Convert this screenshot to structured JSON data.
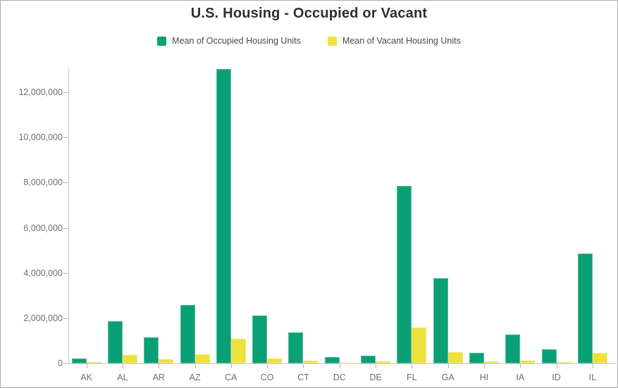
{
  "title": "U.S. Housing - Occupied or Vacant",
  "colors": {
    "occupied": "#0aa076",
    "occupied_border": "#5abf9b",
    "vacant": "#ece23e",
    "vacant_border": "#f1e87d",
    "axis_line": "#c6c6c6",
    "tick": "#b5b5b5",
    "title_text": "#2f2f2f",
    "axis_text": "#6f6f6f",
    "legend_text": "#4a4a4a",
    "canvas_border": "#a9a9a9"
  },
  "legend": {
    "items": [
      {
        "label": "Mean of Occupied Housing Units",
        "color": "#0aa076"
      },
      {
        "label": "Mean of Vacant Housing Units",
        "color": "#ece23e"
      }
    ]
  },
  "chart_data": {
    "type": "bar",
    "title": "U.S. Housing - Occupied or Vacant",
    "xlabel": "",
    "ylabel": "",
    "grid": false,
    "legend_position": "top",
    "categories": [
      "AK",
      "AL",
      "AR",
      "AZ",
      "CA",
      "CO",
      "CT",
      "DC",
      "DE",
      "FL",
      "GA",
      "HI",
      "IA",
      "ID",
      "IL"
    ],
    "series": [
      {
        "name": "Mean of Occupied Housing Units",
        "color": "#0aa076",
        "values": [
          230000,
          1860000,
          1140000,
          2600000,
          13030000,
          2110000,
          1360000,
          280000,
          340000,
          7850000,
          3780000,
          460000,
          1265000,
          630000,
          4850000
        ]
      },
      {
        "name": "Mean of Vacant Housing Units",
        "color": "#ece23e",
        "values": [
          55000,
          375000,
          190000,
          400000,
          1090000,
          210000,
          110000,
          35000,
          95000,
          1580000,
          490000,
          80000,
          140000,
          75000,
          460000
        ]
      }
    ],
    "yticks": [
      0,
      2000000,
      4000000,
      6000000,
      8000000,
      10000000,
      12000000
    ],
    "ylim": [
      0,
      13060000
    ]
  }
}
